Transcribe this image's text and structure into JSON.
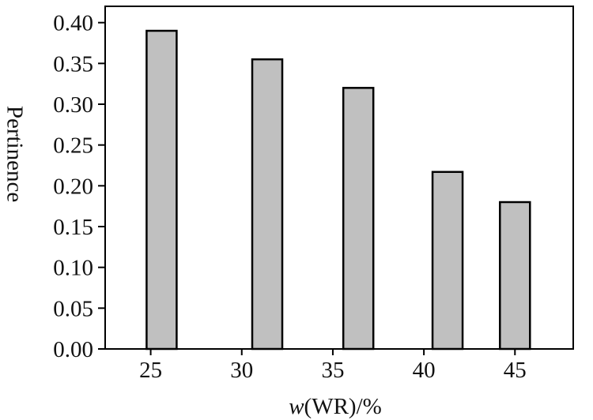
{
  "chart_data": {
    "type": "bar",
    "x": [
      25.6,
      31.4,
      36.4,
      41.3,
      45.0
    ],
    "values": [
      0.39,
      0.355,
      0.32,
      0.217,
      0.18
    ],
    "xlim": [
      22.5,
      48.2
    ],
    "ylim": [
      0,
      0.42
    ],
    "bar_width": 1.65,
    "xticks": [
      25,
      30,
      35,
      40,
      45
    ],
    "xtick_labels": [
      "25",
      "30",
      "35",
      "40",
      "45"
    ],
    "yticks": [
      0.0,
      0.05,
      0.1,
      0.15,
      0.2,
      0.25,
      0.3,
      0.35,
      0.4
    ],
    "ytick_labels": [
      "0.00",
      "0.05",
      "0.10",
      "0.15",
      "0.20",
      "0.25",
      "0.30",
      "0.35",
      "0.40"
    ],
    "xlabel_italic": "w",
    "xlabel_rest": "(WR)/%",
    "ylabel": "Pertinence",
    "grid": false,
    "colors": {
      "bar_fill": "#c0c0c0",
      "bar_stroke": "#000000",
      "axis": "#000000"
    }
  }
}
